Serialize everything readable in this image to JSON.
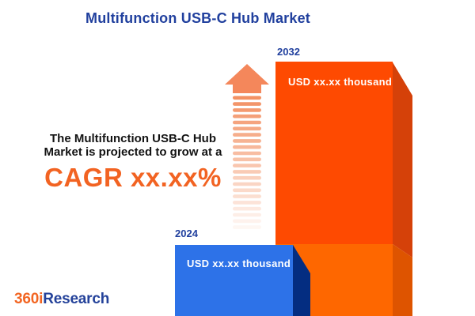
{
  "title": "Multifunction USB-C Hub Market",
  "message": {
    "line1": "The Multifunction USB-C Hub",
    "line2": "Market is projected to grow at a",
    "cagr": "CAGR xx.xx%"
  },
  "chart_data": {
    "type": "bar",
    "title": "Multifunction USB-C Hub Market",
    "categories": [
      "2024",
      "2032"
    ],
    "value_labels": [
      "USD xx.xx thousand",
      "USD xx.xx thousand"
    ],
    "values": [
      "xx.xx",
      "xx.xx"
    ],
    "unit": "USD thousand",
    "annotation": "CAGR xx.xx%",
    "legend": "none",
    "bar_colors": [
      "#2D72E8",
      "#FE4A01"
    ]
  },
  "logo": {
    "prefix": "360i",
    "suffix": "Research"
  },
  "colors": {
    "title_navy": "#21409E",
    "cagr_orange": "#F26322",
    "bar_2024_front": "#2D72E8",
    "bar_2024_side": "#042D81",
    "bar_2032_front_top": "#FE4A01",
    "bar_2032_front_bottom": "#FE6700",
    "bar_2032_side_top": "#D54109",
    "bar_2032_side_bottom": "#DE5400",
    "arrow_head": "#F4875B",
    "arrow_stripe": "#F28B5B",
    "logo_orange": "#F26522",
    "logo_blue": "#24429A"
  }
}
